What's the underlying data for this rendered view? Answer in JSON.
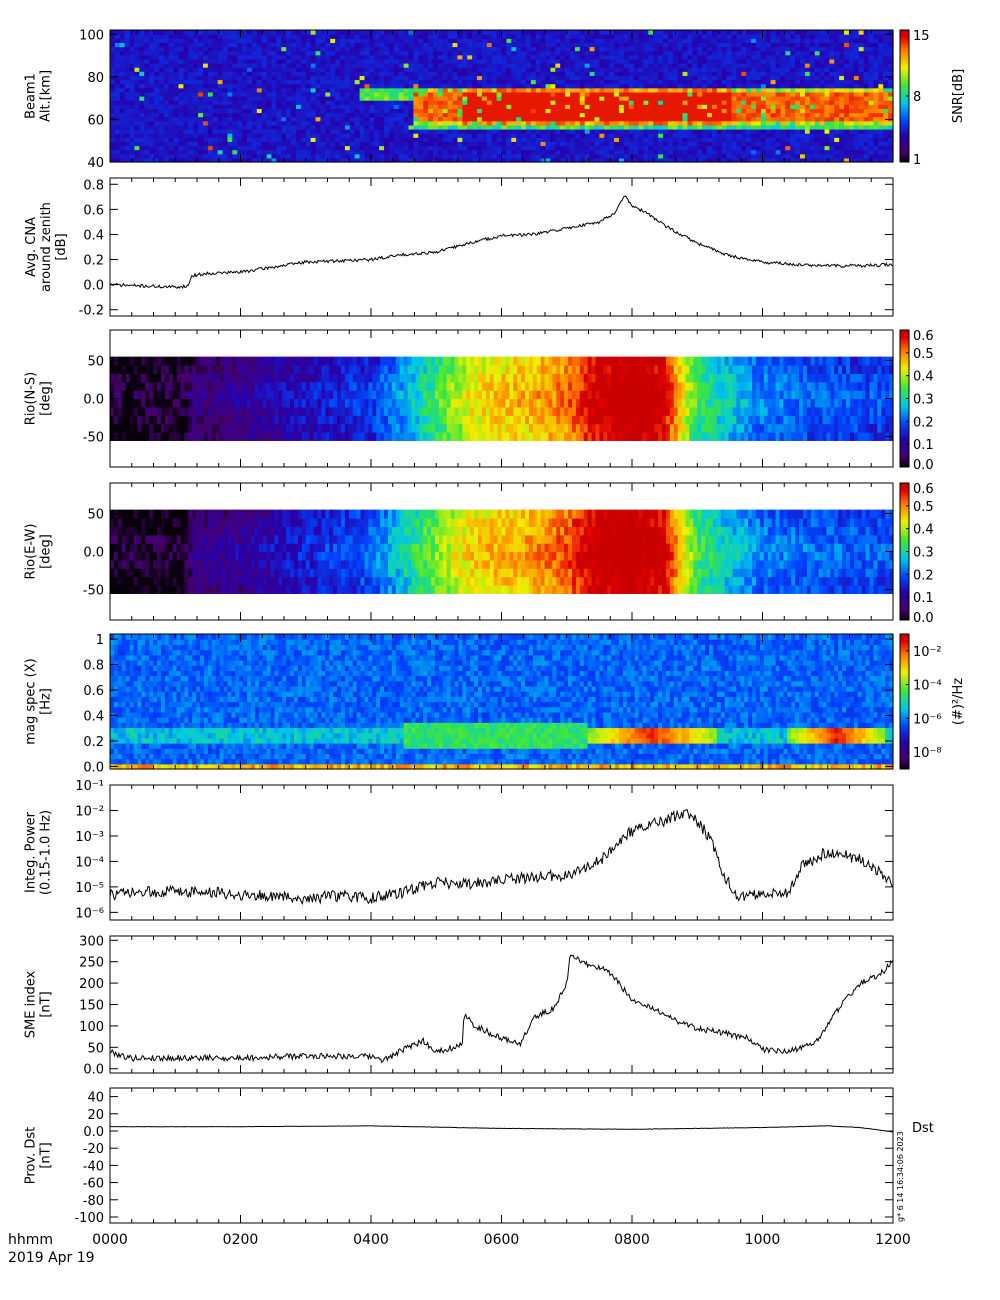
{
  "chart_data": [
    {
      "type": "heatmap",
      "ylabel": [
        "Beam1",
        "Alt.[km]"
      ],
      "yticks": [
        40,
        60,
        80,
        100
      ],
      "ylim": [
        40,
        102
      ],
      "colorbar": {
        "label": "SNR[dB]",
        "ticks": [
          "1",
          "8",
          "15"
        ],
        "range": [
          1,
          15
        ]
      },
      "features": [
        {
          "name": "high-snr-layer",
          "t_start": 4.65,
          "t_end": 12.0,
          "alt_bottom": 58,
          "alt_top": 75,
          "peak_window": [
            5.4,
            9.5
          ]
        },
        {
          "name": "thin-precursor",
          "t_start": 3.85,
          "t_end": 4.65,
          "alt": 72
        }
      ]
    },
    {
      "type": "line",
      "ylabel": [
        "Avg. CNA",
        "around zenith",
        "[dB]"
      ],
      "yticks": [
        -0.2,
        0.0,
        0.2,
        0.4,
        0.6,
        0.8
      ],
      "ylim": [
        -0.25,
        0.85
      ],
      "x": [
        0.0,
        0.5,
        1.0,
        1.2,
        1.25,
        1.5,
        2.0,
        2.5,
        3.0,
        3.5,
        4.0,
        4.5,
        5.0,
        5.5,
        6.0,
        6.5,
        7.0,
        7.5,
        7.75,
        7.9,
        8.0,
        8.2,
        8.5,
        9.0,
        9.5,
        10.0,
        10.5,
        11.0,
        11.5,
        12.0
      ],
      "y": [
        0.0,
        -0.01,
        -0.02,
        -0.01,
        0.07,
        0.09,
        0.1,
        0.14,
        0.18,
        0.19,
        0.2,
        0.24,
        0.26,
        0.33,
        0.39,
        0.4,
        0.45,
        0.5,
        0.58,
        0.72,
        0.62,
        0.58,
        0.47,
        0.33,
        0.23,
        0.18,
        0.16,
        0.15,
        0.15,
        0.16
      ]
    },
    {
      "type": "heatmap",
      "ylabel": [
        "Rio(N-S)",
        "[deg]"
      ],
      "yticks": [
        -50,
        0,
        50
      ],
      "ylim": [
        -90,
        90
      ],
      "data_extent": [
        -55,
        55
      ],
      "colorbar": {
        "label": "",
        "ticks": [
          "0.0",
          "0.1",
          "0.2",
          "0.3",
          "0.4",
          "0.5",
          "0.6"
        ],
        "range": [
          0,
          0.6
        ]
      },
      "time_profile": {
        "t": [
          0.0,
          1.2,
          1.25,
          2.0,
          3.0,
          4.0,
          4.5,
          5.0,
          5.5,
          6.0,
          6.5,
          7.0,
          7.4,
          8.0,
          8.5,
          8.8,
          9.0,
          9.5,
          10.0,
          11.0,
          12.0
        ],
        "v": [
          0.01,
          0.02,
          0.06,
          0.08,
          0.13,
          0.17,
          0.24,
          0.33,
          0.42,
          0.45,
          0.47,
          0.5,
          0.58,
          0.63,
          0.58,
          0.42,
          0.33,
          0.27,
          0.22,
          0.19,
          0.18
        ]
      }
    },
    {
      "type": "heatmap",
      "ylabel": [
        "Rio(E-W)",
        "[deg]"
      ],
      "yticks": [
        -50,
        0,
        50
      ],
      "ylim": [
        -90,
        90
      ],
      "data_extent": [
        -55,
        55
      ],
      "colorbar": {
        "label": "",
        "ticks": [
          "0.0",
          "0.1",
          "0.2",
          "0.3",
          "0.4",
          "0.5",
          "0.6"
        ],
        "range": [
          0,
          0.6
        ]
      },
      "time_profile": {
        "t": [
          0.0,
          1.2,
          1.25,
          2.0,
          3.0,
          4.0,
          4.5,
          5.0,
          5.5,
          6.0,
          6.5,
          7.0,
          7.4,
          8.0,
          8.5,
          8.8,
          9.0,
          9.5,
          10.0,
          11.0,
          12.0
        ],
        "v": [
          0.005,
          0.01,
          0.07,
          0.09,
          0.15,
          0.2,
          0.28,
          0.37,
          0.44,
          0.46,
          0.48,
          0.52,
          0.6,
          0.63,
          0.58,
          0.43,
          0.33,
          0.27,
          0.22,
          0.2,
          0.19
        ]
      }
    },
    {
      "type": "heatmap",
      "ylabel": [
        "mag spec (X)",
        "[Hz]"
      ],
      "yticks": [
        0.0,
        0.2,
        0.4,
        0.6,
        0.8,
        1.0
      ],
      "ylim": [
        -0.02,
        1.04
      ],
      "colorbar": {
        "label": "(#)²/Hz",
        "ticks": [
          "10⁻⁸",
          "10⁻⁶",
          "10⁻⁴",
          "10⁻²"
        ],
        "log_range": [
          -9,
          -1
        ]
      },
      "features": [
        {
          "name": "pc1-band-main",
          "t_start": 7.3,
          "t_end": 9.3,
          "f_low": 0.17,
          "f_high": 0.32
        },
        {
          "name": "pc1-band-late",
          "t_start": 10.4,
          "t_end": 11.9,
          "f_low": 0.17,
          "f_high": 0.3
        },
        {
          "name": "background-band",
          "t_start": 0.0,
          "t_end": 12.0,
          "f_low": 0.2,
          "f_high": 0.3
        }
      ]
    },
    {
      "type": "line",
      "ylabel": [
        "Integ. Power",
        "(0.15-1.0 Hz)"
      ],
      "yscale": "log",
      "yticks": [
        "10⁻⁶",
        "10⁻⁵",
        "10⁻⁴",
        "10⁻³",
        "10⁻²",
        "10⁻¹"
      ],
      "ylim_log10": [
        -6.3,
        -1
      ],
      "x": [
        0.0,
        1.0,
        2.0,
        3.0,
        3.5,
        4.0,
        4.5,
        5.0,
        5.5,
        6.0,
        6.5,
        7.0,
        7.5,
        8.0,
        8.5,
        8.8,
        9.0,
        9.2,
        9.4,
        9.6,
        10.0,
        10.4,
        10.6,
        11.0,
        11.5,
        12.0
      ],
      "y_log10": [
        -5.3,
        -5.15,
        -5.3,
        -5.45,
        -5.35,
        -5.45,
        -5.2,
        -4.8,
        -4.9,
        -4.75,
        -4.6,
        -4.55,
        -4.0,
        -2.8,
        -2.4,
        -2.1,
        -2.4,
        -3.1,
        -4.5,
        -5.4,
        -5.3,
        -5.2,
        -4.2,
        -3.6,
        -3.9,
        -4.8
      ]
    },
    {
      "type": "line",
      "ylabel": [
        "SME index",
        "[nT]"
      ],
      "yticks": [
        0,
        50,
        100,
        150,
        200,
        250,
        300
      ],
      "ylim": [
        -10,
        310
      ],
      "x": [
        0.0,
        0.3,
        1.0,
        2.0,
        3.0,
        3.5,
        4.0,
        4.2,
        4.5,
        4.8,
        5.0,
        5.4,
        5.42,
        5.6,
        6.0,
        6.3,
        6.5,
        6.8,
        7.0,
        7.05,
        7.3,
        7.6,
        7.8,
        8.0,
        8.3,
        8.5,
        8.7,
        9.0,
        9.5,
        9.8,
        10.0,
        10.3,
        10.5,
        10.8,
        10.9,
        11.0,
        11.2,
        11.5,
        11.8,
        12.0
      ],
      "y": [
        40,
        25,
        25,
        25,
        30,
        30,
        28,
        20,
        45,
        65,
        40,
        55,
        125,
        100,
        70,
        60,
        120,
        140,
        200,
        265,
        245,
        230,
        200,
        160,
        140,
        130,
        110,
        95,
        80,
        70,
        45,
        40,
        45,
        60,
        80,
        100,
        150,
        200,
        220,
        250
      ]
    },
    {
      "type": "line",
      "ylabel": [
        "Prov. Dst",
        "[nT]"
      ],
      "yticks": [
        -100,
        -80,
        -60,
        -40,
        -20,
        0,
        20,
        40
      ],
      "ylim": [
        -107,
        50
      ],
      "legend": "Dst",
      "x": [
        0.0,
        2.0,
        4.0,
        6.0,
        8.0,
        10.0,
        11.0,
        11.5,
        12.0
      ],
      "y": [
        5,
        5,
        6,
        3,
        2,
        4,
        6,
        4,
        -1
      ]
    }
  ],
  "xaxis": {
    "label": "hhmm",
    "date": "2019 Apr 19",
    "ticks": [
      "0000",
      "0200",
      "0400",
      "0600",
      "0800",
      "1000",
      "1200"
    ],
    "range_hours": [
      0,
      12
    ]
  },
  "side_stamp": "g* 6 14 16:34:06 2023"
}
